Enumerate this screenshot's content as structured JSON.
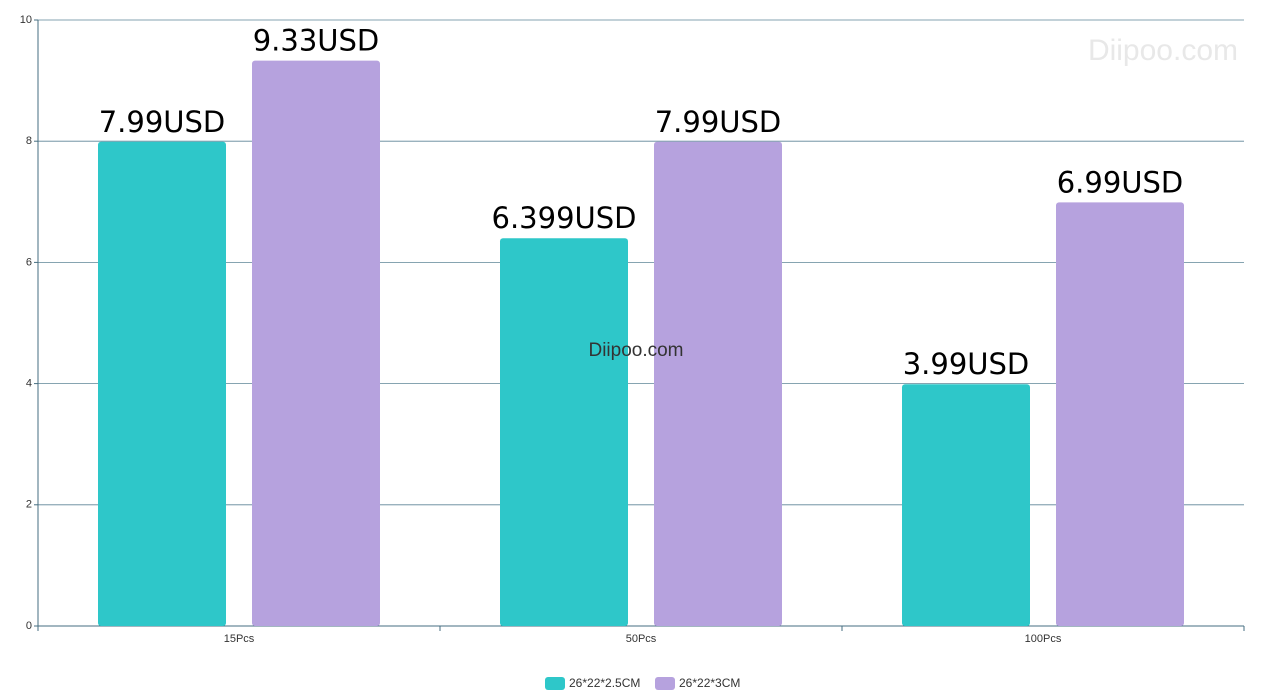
{
  "chart_data": {
    "type": "bar",
    "categories": [
      "15Pcs",
      "50Pcs",
      "100Pcs"
    ],
    "series": [
      {
        "name": "26*22*2.5CM",
        "color": "#2ec7c9",
        "values": [
          7.99,
          6.399,
          3.99
        ],
        "value_labels": [
          "7.99USD",
          "6.399USD",
          "3.99USD"
        ]
      },
      {
        "name": "26*22*3CM",
        "color": "#b6a2de",
        "values": [
          9.33,
          7.99,
          6.99
        ],
        "value_labels": [
          "9.33USD",
          "7.99USD",
          "6.99USD"
        ]
      }
    ],
    "ylim": [
      0,
      10
    ],
    "yticks": [
      0,
      2,
      4,
      6,
      8,
      10
    ],
    "grid": true,
    "watermark": "Diipoo.com"
  }
}
